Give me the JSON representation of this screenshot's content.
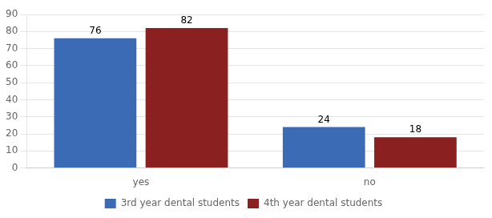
{
  "chart_data": {
    "type": "bar",
    "categories": [
      "yes",
      "no"
    ],
    "series": [
      {
        "name": "3rd year dental students",
        "color": "#3b6bb5",
        "values": [
          76,
          24
        ]
      },
      {
        "name": "4th year dental students",
        "color": "#8b2020",
        "values": [
          82,
          18
        ]
      }
    ],
    "ylim": [
      0,
      90
    ],
    "yticks": [
      0,
      10,
      20,
      30,
      40,
      50,
      60,
      70,
      80,
      90
    ],
    "grid": true,
    "legend": "bottom",
    "data_labels": true
  }
}
